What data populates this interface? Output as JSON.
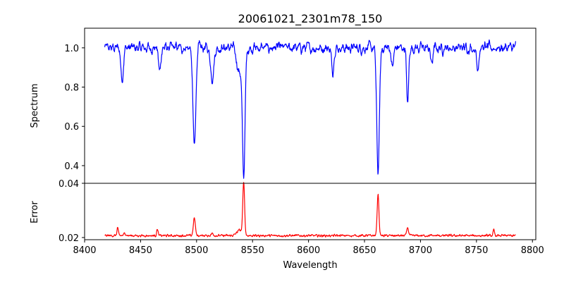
{
  "chart_data": [
    {
      "type": "line",
      "title": "20061021_2301m78_150",
      "xlabel": "",
      "ylabel": "Spectrum",
      "xlim": [
        8400,
        8803
      ],
      "ylim": [
        0.31,
        1.1
      ],
      "yticks": [
        "0.4",
        "0.6",
        "0.8",
        "1.0"
      ],
      "color": "#0000ff",
      "continuum": 1.0,
      "noise": 0.024,
      "x_range": [
        8418,
        8785
      ],
      "absorption_lines": [
        {
          "center": 8498.0,
          "depth": 0.5,
          "width": 1.3
        },
        {
          "center": 8542.1,
          "depth": 0.64,
          "width": 1.2
        },
        {
          "center": 8662.1,
          "depth": 0.63,
          "width": 1.2
        },
        {
          "center": 8688.5,
          "depth": 0.29,
          "width": 0.9
        },
        {
          "center": 8433.5,
          "depth": 0.16,
          "width": 1.1
        },
        {
          "center": 8467.0,
          "depth": 0.12,
          "width": 1.0
        },
        {
          "center": 8514.0,
          "depth": 0.15,
          "width": 1.5
        },
        {
          "center": 8538.0,
          "depth": 0.12,
          "width": 2.0
        },
        {
          "center": 8621.5,
          "depth": 0.12,
          "width": 1.0
        },
        {
          "center": 8675.0,
          "depth": 0.1,
          "width": 1.0
        },
        {
          "center": 8710.0,
          "depth": 0.08,
          "width": 1.0
        },
        {
          "center": 8751.0,
          "depth": 0.1,
          "width": 1.0
        }
      ]
    },
    {
      "type": "line",
      "title": "",
      "xlabel": "Wavelength",
      "ylabel": "Error",
      "xlim": [
        8400,
        8803
      ],
      "ylim": [
        0.0192,
        0.04
      ],
      "yticks": [
        "0.02",
        "0.04"
      ],
      "xticks": [
        "8400",
        "8450",
        "8500",
        "8550",
        "8600",
        "8650",
        "8700",
        "8750",
        "8800"
      ],
      "color": "#ff0000",
      "baseline": 0.0207,
      "noise": 0.0004,
      "x_range": [
        8418,
        8785
      ],
      "peaks": [
        {
          "center": 8498.0,
          "height": 0.0065,
          "width": 0.9
        },
        {
          "center": 8542.1,
          "height": 0.0193,
          "width": 0.8
        },
        {
          "center": 8662.1,
          "height": 0.0153,
          "width": 0.8
        },
        {
          "center": 8688.5,
          "height": 0.003,
          "width": 0.8
        },
        {
          "center": 8429.5,
          "height": 0.003,
          "width": 0.6
        },
        {
          "center": 8465.0,
          "height": 0.0025,
          "width": 0.6
        },
        {
          "center": 8765.5,
          "height": 0.002,
          "width": 0.6
        },
        {
          "center": 8538.5,
          "height": 0.002,
          "width": 2.5
        },
        {
          "center": 8436.0,
          "height": 0.0008,
          "width": 1.0
        },
        {
          "center": 8514.0,
          "height": 0.0008,
          "width": 1.0
        }
      ]
    }
  ]
}
